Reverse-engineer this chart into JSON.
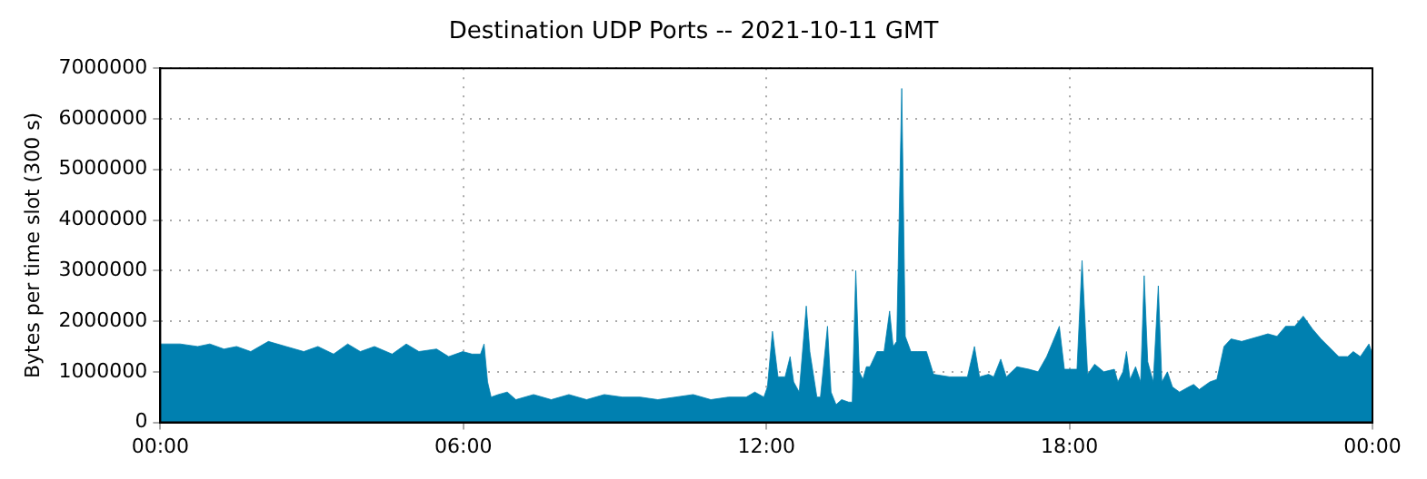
{
  "chart_data": {
    "type": "area",
    "title": "Destination UDP Ports -- 2021-10-11 GMT",
    "ylabel": "Bytes per time slot (300 s)",
    "x": [
      0,
      0.39,
      0.74,
      0.98,
      1.26,
      1.51,
      1.79,
      2.14,
      2.49,
      2.84,
      3.12,
      3.43,
      3.71,
      3.96,
      4.24,
      4.59,
      4.87,
      5.12,
      5.47,
      5.71,
      5.99,
      6.17,
      6.34,
      6.41,
      6.48,
      6.55,
      6.69,
      6.87,
      7.04,
      7.39,
      7.74,
      8.09,
      8.44,
      8.79,
      9.15,
      9.5,
      9.85,
      10.2,
      10.55,
      10.9,
      11.25,
      11.6,
      11.77,
      11.95,
      12.02,
      12.12,
      12.23,
      12.37,
      12.47,
      12.54,
      12.65,
      12.79,
      12.86,
      13,
      13.07,
      13.21,
      13.28,
      13.38,
      13.49,
      13.63,
      13.7,
      13.77,
      13.84,
      13.91,
      13.98,
      14.05,
      14.19,
      14.33,
      14.44,
      14.51,
      14.58,
      14.68,
      14.75,
      14.86,
      15,
      15.17,
      15.31,
      15.63,
      15.98,
      16.12,
      16.22,
      16.4,
      16.5,
      16.64,
      16.75,
      16.96,
      17.2,
      17.38,
      17.55,
      17.8,
      17.9,
      18.08,
      18.15,
      18.25,
      18.36,
      18.5,
      18.68,
      18.89,
      18.96,
      19.06,
      19.13,
      19.2,
      19.31,
      19.41,
      19.48,
      19.55,
      19.66,
      19.76,
      19.83,
      19.94,
      20.04,
      20.18,
      20.36,
      20.46,
      20.57,
      20.78,
      20.92,
      21.06,
      21.2,
      21.41,
      21.76,
      21.93,
      22.11,
      22.28,
      22.46,
      22.63,
      22.81,
      22.98,
      23.33,
      23.51,
      23.62,
      23.76,
      23.93,
      24
    ],
    "series": [
      {
        "color": "#0080b0",
        "values": [
          1550000,
          1550000,
          1500000,
          1550000,
          1450000,
          1500000,
          1400000,
          1600000,
          1500000,
          1400000,
          1500000,
          1350000,
          1550000,
          1400000,
          1500000,
          1350000,
          1550000,
          1400000,
          1450000,
          1300000,
          1400000,
          1350000,
          1350000,
          1550000,
          800000,
          500000,
          550000,
          600000,
          450000,
          550000,
          450000,
          550000,
          450000,
          550000,
          500000,
          500000,
          450000,
          500000,
          550000,
          450000,
          500000,
          500000,
          600000,
          500000,
          700000,
          1800000,
          900000,
          900000,
          1300000,
          800000,
          600000,
          2300000,
          1400000,
          500000,
          500000,
          1900000,
          600000,
          350000,
          450000,
          400000,
          400000,
          3000000,
          1000000,
          850000,
          1100000,
          1100000,
          1400000,
          1400000,
          2200000,
          1500000,
          1600000,
          6600000,
          1700000,
          1400000,
          1400000,
          1400000,
          950000,
          900000,
          900000,
          1500000,
          900000,
          950000,
          900000,
          1250000,
          900000,
          1100000,
          1050000,
          1000000,
          1300000,
          1900000,
          1050000,
          1050000,
          1050000,
          3200000,
          950000,
          1150000,
          1000000,
          1050000,
          800000,
          1000000,
          1400000,
          850000,
          1100000,
          800000,
          2900000,
          1200000,
          800000,
          2700000,
          800000,
          1000000,
          700000,
          600000,
          700000,
          750000,
          650000,
          800000,
          850000,
          1500000,
          1650000,
          1600000,
          1700000,
          1750000,
          1700000,
          1900000,
          1900000,
          2100000,
          1850000,
          1650000,
          1300000,
          1300000,
          1400000,
          1300000,
          1550000,
          1350000
        ]
      }
    ],
    "xlim": [
      0,
      24
    ],
    "xticks": [
      {
        "value": 0,
        "label": "00:00"
      },
      {
        "value": 6,
        "label": "06:00"
      },
      {
        "value": 12,
        "label": "12:00"
      },
      {
        "value": 18,
        "label": "18:00"
      },
      {
        "value": 24,
        "label": "00:00"
      }
    ],
    "ylim": [
      0,
      7000000
    ],
    "yticks": [
      0,
      1000000,
      2000000,
      3000000,
      4000000,
      5000000,
      6000000,
      7000000
    ],
    "grid": true,
    "legend": false
  }
}
